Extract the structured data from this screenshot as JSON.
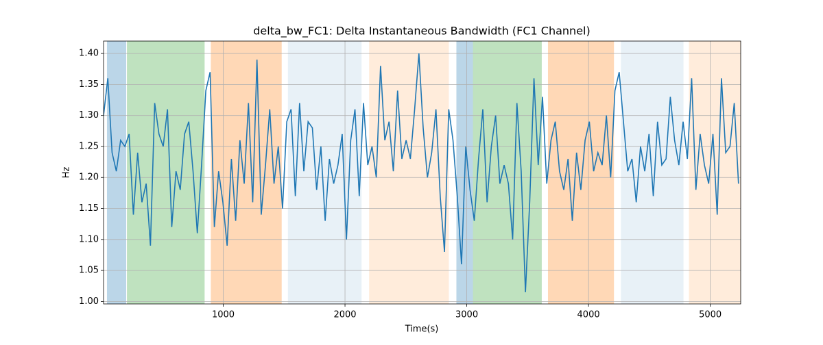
{
  "chart_data": {
    "type": "line",
    "title": "delta_bw_FC1: Delta Instantaneous Bandwidth (FC1 Channel)",
    "xlabel": "Time(s)",
    "ylabel": "Hz",
    "x": [
      17,
      52,
      87,
      122,
      157,
      192,
      227,
      262,
      297,
      332,
      367,
      402,
      437,
      472,
      507,
      542,
      577,
      612,
      647,
      682,
      717,
      752,
      787,
      822,
      857,
      892,
      927,
      962,
      997,
      1032,
      1067,
      1102,
      1137,
      1172,
      1207,
      1242,
      1277,
      1312,
      1347,
      1382,
      1417,
      1452,
      1487,
      1522,
      1557,
      1592,
      1627,
      1662,
      1697,
      1732,
      1767,
      1802,
      1837,
      1872,
      1907,
      1942,
      1977,
      2012,
      2047,
      2082,
      2117,
      2152,
      2187,
      2222,
      2257,
      2292,
      2327,
      2362,
      2397,
      2432,
      2467,
      2502,
      2537,
      2572,
      2607,
      2642,
      2677,
      2712,
      2747,
      2782,
      2817,
      2852,
      2887,
      2922,
      2957,
      2992,
      3027,
      3062,
      3097,
      3132,
      3167,
      3202,
      3237,
      3272,
      3307,
      3342,
      3377,
      3412,
      3447,
      3482,
      3517,
      3552,
      3587,
      3622,
      3657,
      3692,
      3727,
      3762,
      3797,
      3832,
      3867,
      3902,
      3937,
      3972,
      4007,
      4042,
      4077,
      4112,
      4147,
      4182,
      4217,
      4252,
      4287,
      4322,
      4357,
      4392,
      4427,
      4462,
      4497,
      4532,
      4567,
      4602,
      4637,
      4672,
      4707,
      4742,
      4777,
      4812,
      4847,
      4882,
      4917,
      4952,
      4987,
      5022,
      5057,
      5092,
      5127,
      5162,
      5197,
      5232
    ],
    "series": [
      {
        "name": "delta_bw_FC1",
        "color": "#1f77b4",
        "values": [
          1.3,
          1.36,
          1.24,
          1.21,
          1.26,
          1.25,
          1.27,
          1.14,
          1.24,
          1.16,
          1.19,
          1.09,
          1.32,
          1.27,
          1.25,
          1.31,
          1.12,
          1.21,
          1.18,
          1.27,
          1.29,
          1.21,
          1.11,
          1.22,
          1.34,
          1.37,
          1.12,
          1.21,
          1.16,
          1.09,
          1.23,
          1.13,
          1.26,
          1.19,
          1.32,
          1.16,
          1.39,
          1.14,
          1.22,
          1.31,
          1.19,
          1.25,
          1.15,
          1.29,
          1.31,
          1.17,
          1.32,
          1.21,
          1.29,
          1.28,
          1.18,
          1.25,
          1.13,
          1.23,
          1.19,
          1.22,
          1.27,
          1.1,
          1.26,
          1.31,
          1.17,
          1.32,
          1.22,
          1.25,
          1.2,
          1.38,
          1.26,
          1.29,
          1.21,
          1.34,
          1.23,
          1.26,
          1.23,
          1.31,
          1.4,
          1.28,
          1.2,
          1.24,
          1.31,
          1.17,
          1.08,
          1.31,
          1.26,
          1.17,
          1.06,
          1.25,
          1.18,
          1.13,
          1.23,
          1.31,
          1.16,
          1.25,
          1.3,
          1.19,
          1.22,
          1.19,
          1.1,
          1.32,
          1.21,
          1.015,
          1.16,
          1.36,
          1.22,
          1.33,
          1.19,
          1.26,
          1.29,
          1.21,
          1.18,
          1.23,
          1.13,
          1.24,
          1.18,
          1.26,
          1.29,
          1.21,
          1.24,
          1.22,
          1.3,
          1.2,
          1.34,
          1.37,
          1.29,
          1.21,
          1.23,
          1.16,
          1.25,
          1.21,
          1.27,
          1.17,
          1.29,
          1.22,
          1.23,
          1.33,
          1.26,
          1.22,
          1.29,
          1.23,
          1.36,
          1.18,
          1.27,
          1.22,
          1.19,
          1.27,
          1.14,
          1.36,
          1.24,
          1.25,
          1.32,
          1.19
        ]
      }
    ],
    "spans": [
      {
        "start": 45,
        "end": 203,
        "color": "rgba(31,119,180,0.3)"
      },
      {
        "start": 209,
        "end": 847,
        "color": "rgba(44,160,44,0.3)"
      },
      {
        "start": 898,
        "end": 1480,
        "color": "rgba(255,127,14,0.3)"
      },
      {
        "start": 1531,
        "end": 2136,
        "color": "rgba(31,119,180,0.1)"
      },
      {
        "start": 2198,
        "end": 2853,
        "color": "rgba(255,127,14,0.15)"
      },
      {
        "start": 2915,
        "end": 3051,
        "color": "rgba(31,119,180,0.3)"
      },
      {
        "start": 3051,
        "end": 3616,
        "color": "rgba(44,160,44,0.3)"
      },
      {
        "start": 3667,
        "end": 4209,
        "color": "rgba(255,127,14,0.3)"
      },
      {
        "start": 4266,
        "end": 4780,
        "color": "rgba(31,119,180,0.1)"
      },
      {
        "start": 4825,
        "end": 5250,
        "color": "rgba(255,127,14,0.15)"
      }
    ],
    "xlim": [
      17,
      5250
    ],
    "xticks": [
      1000,
      2000,
      3000,
      4000,
      5000
    ],
    "ylim": [
      0.996,
      1.42
    ],
    "yticks": [
      {
        "value": 1.0,
        "label": "1.00"
      },
      {
        "value": 1.05,
        "label": "1.05"
      },
      {
        "value": 1.1,
        "label": "1.10"
      },
      {
        "value": 1.15,
        "label": "1.15"
      },
      {
        "value": 1.2,
        "label": "1.20"
      },
      {
        "value": 1.25,
        "label": "1.25"
      },
      {
        "value": 1.3,
        "label": "1.30"
      },
      {
        "value": 1.35,
        "label": "1.35"
      },
      {
        "value": 1.4,
        "label": "1.40"
      }
    ],
    "grid": true
  }
}
